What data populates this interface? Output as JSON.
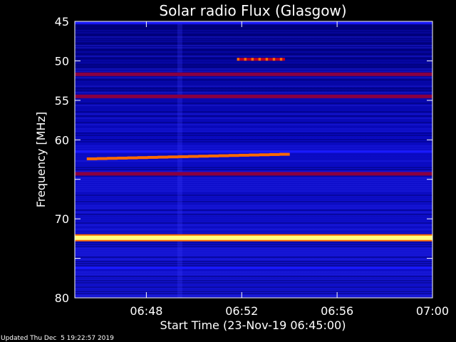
{
  "chart_data": {
    "type": "heatmap",
    "title": "Solar radio Flux (Glasgow)",
    "xlabel": "Start Time (23-Nov-19 06:45:00)",
    "ylabel": "Frequency [MHz]",
    "x_unit": "time",
    "x_range": [
      "06:45:00",
      "07:00:00"
    ],
    "y_range": [
      45,
      80
    ],
    "y_ticks": [
      "45",
      "50",
      "55",
      "60",
      "65",
      "70",
      "75",
      "80"
    ],
    "y_tick_labels": [
      "45",
      "50",
      "55",
      "60",
      "",
      "70",
      "",
      "80"
    ],
    "x_ticks": [
      "06:48",
      "06:52",
      "06:56",
      "07:00"
    ],
    "x_tick_values": [
      3,
      7,
      11,
      15
    ],
    "colormap": [
      "#00001e",
      "#0000a0",
      "#1a1aff",
      "#8a0040",
      "#c00020",
      "#ff6a00",
      "#ffff80"
    ],
    "features": [
      {
        "kind": "band",
        "label": "interference",
        "freq": 45.2,
        "t0": 0,
        "t1": 15,
        "level": 0.35
      },
      {
        "kind": "band",
        "label": "interference",
        "freq": 51.7,
        "t0": 0,
        "t1": 15,
        "level": 0.55
      },
      {
        "kind": "band",
        "label": "interference",
        "freq": 54.5,
        "t0": 0,
        "t1": 15,
        "level": 0.5
      },
      {
        "kind": "band",
        "label": "interference",
        "freq": 61.5,
        "t0": 0,
        "t1": 15,
        "level": 0.4
      },
      {
        "kind": "band",
        "label": "interference",
        "freq": 64.3,
        "t0": 0,
        "t1": 15,
        "level": 0.55
      },
      {
        "kind": "band",
        "label": "interference",
        "freq": 72.4,
        "t0": 0,
        "t1": 15,
        "level": 1.0
      },
      {
        "kind": "band",
        "label": "interference",
        "freq": 76.2,
        "t0": 0,
        "t1": 15,
        "level": 0.3
      },
      {
        "kind": "streak",
        "freq": 62.4,
        "t0": 0.5,
        "t1": 9.0,
        "level": 0.85,
        "freq_end": 61.8
      },
      {
        "kind": "streak",
        "freq": 49.8,
        "t0": 6.8,
        "t1": 8.8,
        "level": 0.6,
        "freq_end": 49.8
      }
    ]
  },
  "footer": {
    "updated": "Updated Thu Dec  5 19:22:57 2019"
  }
}
